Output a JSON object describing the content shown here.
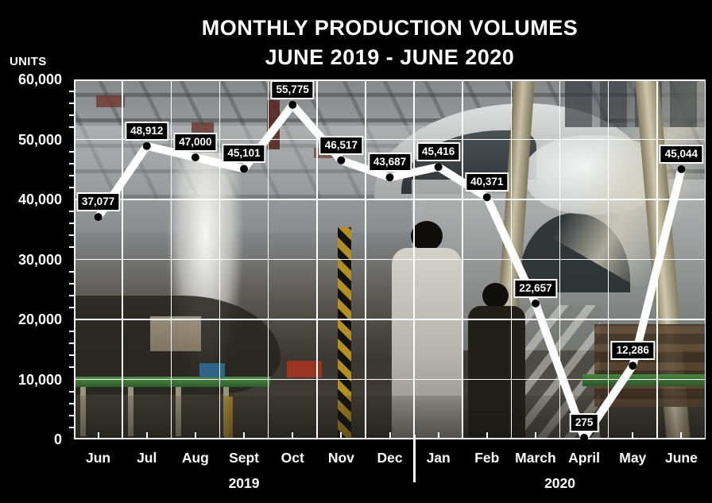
{
  "title": {
    "line1": "MONTHLY PRODUCTION VOLUMES",
    "line2": "JUNE 2019 - JUNE 2020"
  },
  "y_axis": {
    "label": "UNITS",
    "tick_labels": [
      "60,000",
      "50,000",
      "40,000",
      "30,000",
      "20,000",
      "10,000",
      "0"
    ]
  },
  "chart_data": {
    "type": "line",
    "title": "MONTHLY PRODUCTION VOLUMES",
    "subtitle": "JUNE 2019 - JUNE 2020",
    "ylabel": "UNITS",
    "ylim": [
      0,
      60000
    ],
    "y_major_step": 10000,
    "y_minor_step": 2000,
    "grid": true,
    "categories": [
      "Jun",
      "Jul",
      "Aug",
      "Sept",
      "Oct",
      "Nov",
      "Dec",
      "Jan",
      "Feb",
      "March",
      "April",
      "May",
      "June"
    ],
    "values": [
      37077,
      48912,
      47000,
      45101,
      55775,
      46517,
      43687,
      45416,
      40371,
      22657,
      275,
      12286,
      45044
    ],
    "point_labels": [
      "37,077",
      "48,912",
      "47,000",
      "45,101",
      "55,775",
      "46,517",
      "43,687",
      "45,416",
      "40,371",
      "22,657",
      "275",
      "12,286",
      "45,044"
    ],
    "year_groups": [
      {
        "label": "2019",
        "start": 0,
        "count": 7
      },
      {
        "label": "2020",
        "start": 7,
        "count": 6
      }
    ],
    "line_color": "#ffffff",
    "marker_color": "#000000",
    "grid_color": "#ffffff",
    "label_bg": "#000000",
    "label_border": "#ffffff",
    "label_text": "#ffffff"
  }
}
